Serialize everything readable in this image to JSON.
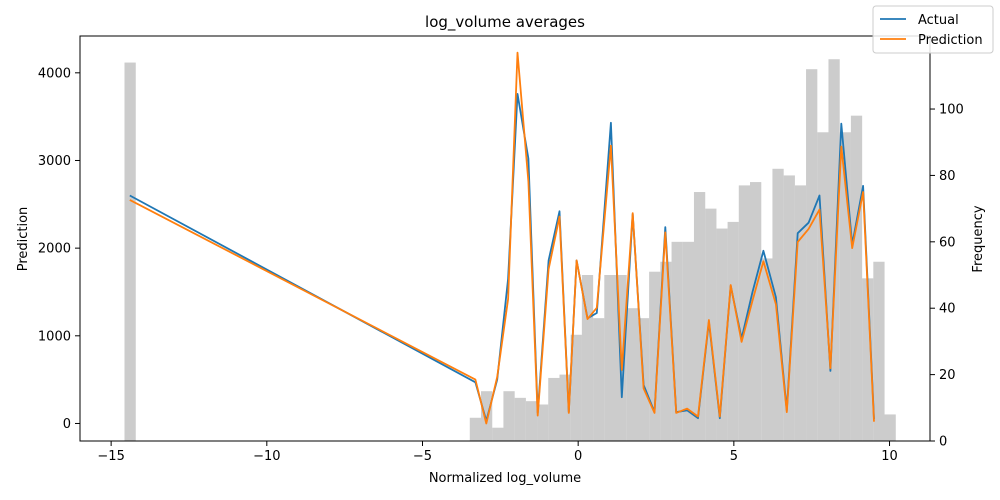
{
  "chart_data": {
    "type": "line",
    "title": "log_volume averages",
    "xlabel": "Normalized log_volume",
    "ylabel": "Prediction",
    "y2label": "Frequency",
    "xlim": [
      -16,
      11.3
    ],
    "ylim": [
      -200,
      4420
    ],
    "y2lim": [
      0,
      122
    ],
    "xticks": [
      -15,
      -10,
      -5,
      0,
      5,
      10
    ],
    "yticks": [
      0,
      1000,
      2000,
      3000,
      4000
    ],
    "y2ticks": [
      0,
      20,
      40,
      60,
      80,
      100
    ],
    "grid": false,
    "legend": {
      "position": "top-right"
    },
    "histogram": {
      "bin_width": 0.362,
      "color": "#cccccc",
      "bins": [
        {
          "x": -14.39,
          "count": 114
        },
        {
          "x": -3.3,
          "count": 7
        },
        {
          "x": -2.94,
          "count": 15
        },
        {
          "x": -2.58,
          "count": 4
        },
        {
          "x": -2.22,
          "count": 15
        },
        {
          "x": -1.86,
          "count": 13
        },
        {
          "x": -1.5,
          "count": 12
        },
        {
          "x": -1.14,
          "count": 11
        },
        {
          "x": -0.78,
          "count": 19
        },
        {
          "x": -0.42,
          "count": 20
        },
        {
          "x": -0.06,
          "count": 32
        },
        {
          "x": 0.3,
          "count": 50
        },
        {
          "x": 0.66,
          "count": 37
        },
        {
          "x": 1.02,
          "count": 50
        },
        {
          "x": 1.38,
          "count": 50
        },
        {
          "x": 1.74,
          "count": 40
        },
        {
          "x": 2.1,
          "count": 37
        },
        {
          "x": 2.46,
          "count": 51
        },
        {
          "x": 2.82,
          "count": 54
        },
        {
          "x": 3.18,
          "count": 60
        },
        {
          "x": 3.54,
          "count": 60
        },
        {
          "x": 3.9,
          "count": 75
        },
        {
          "x": 4.26,
          "count": 70
        },
        {
          "x": 4.62,
          "count": 64
        },
        {
          "x": 4.98,
          "count": 66
        },
        {
          "x": 5.34,
          "count": 77
        },
        {
          "x": 5.7,
          "count": 78
        },
        {
          "x": 6.06,
          "count": 55
        },
        {
          "x": 6.42,
          "count": 82
        },
        {
          "x": 6.78,
          "count": 80
        },
        {
          "x": 7.14,
          "count": 77
        },
        {
          "x": 7.5,
          "count": 112
        },
        {
          "x": 7.86,
          "count": 93
        },
        {
          "x": 8.22,
          "count": 115
        },
        {
          "x": 8.58,
          "count": 93
        },
        {
          "x": 8.94,
          "count": 98
        },
        {
          "x": 9.3,
          "count": 49
        },
        {
          "x": 9.66,
          "count": 54
        },
        {
          "x": 10.02,
          "count": 8
        }
      ]
    },
    "series": [
      {
        "name": "Actual",
        "color": "#1f77b4",
        "points": [
          [
            -14.4,
            2600
          ],
          [
            -3.3,
            470
          ],
          [
            -2.95,
            30
          ],
          [
            -2.6,
            500
          ],
          [
            -2.25,
            1650
          ],
          [
            -1.95,
            3760
          ],
          [
            -1.6,
            3020
          ],
          [
            -1.3,
            120
          ],
          [
            -0.95,
            1860
          ],
          [
            -0.6,
            2420
          ],
          [
            -0.3,
            130
          ],
          [
            -0.05,
            1860
          ],
          [
            0.3,
            1200
          ],
          [
            0.6,
            1260
          ],
          [
            1.05,
            3430
          ],
          [
            1.4,
            300
          ],
          [
            1.75,
            2390
          ],
          [
            2.1,
            440
          ],
          [
            2.45,
            130
          ],
          [
            2.8,
            2240
          ],
          [
            3.15,
            130
          ],
          [
            3.5,
            150
          ],
          [
            3.85,
            60
          ],
          [
            4.2,
            1160
          ],
          [
            4.55,
            60
          ],
          [
            4.9,
            1570
          ],
          [
            5.25,
            970
          ],
          [
            5.6,
            1500
          ],
          [
            5.95,
            1970
          ],
          [
            6.35,
            1440
          ],
          [
            6.7,
            150
          ],
          [
            7.05,
            2170
          ],
          [
            7.4,
            2290
          ],
          [
            7.75,
            2600
          ],
          [
            8.1,
            600
          ],
          [
            8.45,
            3420
          ],
          [
            8.8,
            2040
          ],
          [
            9.15,
            2710
          ],
          [
            9.5,
            50
          ]
        ]
      },
      {
        "name": "Prediction",
        "color": "#ff7f0e",
        "points": [
          [
            -14.4,
            2550
          ],
          [
            -3.3,
            500
          ],
          [
            -2.95,
            0
          ],
          [
            -2.6,
            530
          ],
          [
            -2.25,
            1420
          ],
          [
            -1.95,
            4230
          ],
          [
            -1.6,
            2760
          ],
          [
            -1.3,
            90
          ],
          [
            -0.95,
            1760
          ],
          [
            -0.6,
            2360
          ],
          [
            -0.3,
            120
          ],
          [
            -0.05,
            1860
          ],
          [
            0.3,
            1190
          ],
          [
            0.6,
            1320
          ],
          [
            1.05,
            3170
          ],
          [
            1.4,
            610
          ],
          [
            1.75,
            2400
          ],
          [
            2.1,
            400
          ],
          [
            2.45,
            120
          ],
          [
            2.8,
            2180
          ],
          [
            3.15,
            120
          ],
          [
            3.5,
            170
          ],
          [
            3.85,
            80
          ],
          [
            4.2,
            1180
          ],
          [
            4.55,
            80
          ],
          [
            4.9,
            1580
          ],
          [
            5.25,
            930
          ],
          [
            5.6,
            1400
          ],
          [
            5.95,
            1850
          ],
          [
            6.35,
            1360
          ],
          [
            6.7,
            130
          ],
          [
            7.05,
            2070
          ],
          [
            7.4,
            2220
          ],
          [
            7.75,
            2440
          ],
          [
            8.1,
            630
          ],
          [
            8.45,
            3160
          ],
          [
            8.8,
            2000
          ],
          [
            9.15,
            2640
          ],
          [
            9.5,
            20
          ]
        ]
      }
    ]
  }
}
